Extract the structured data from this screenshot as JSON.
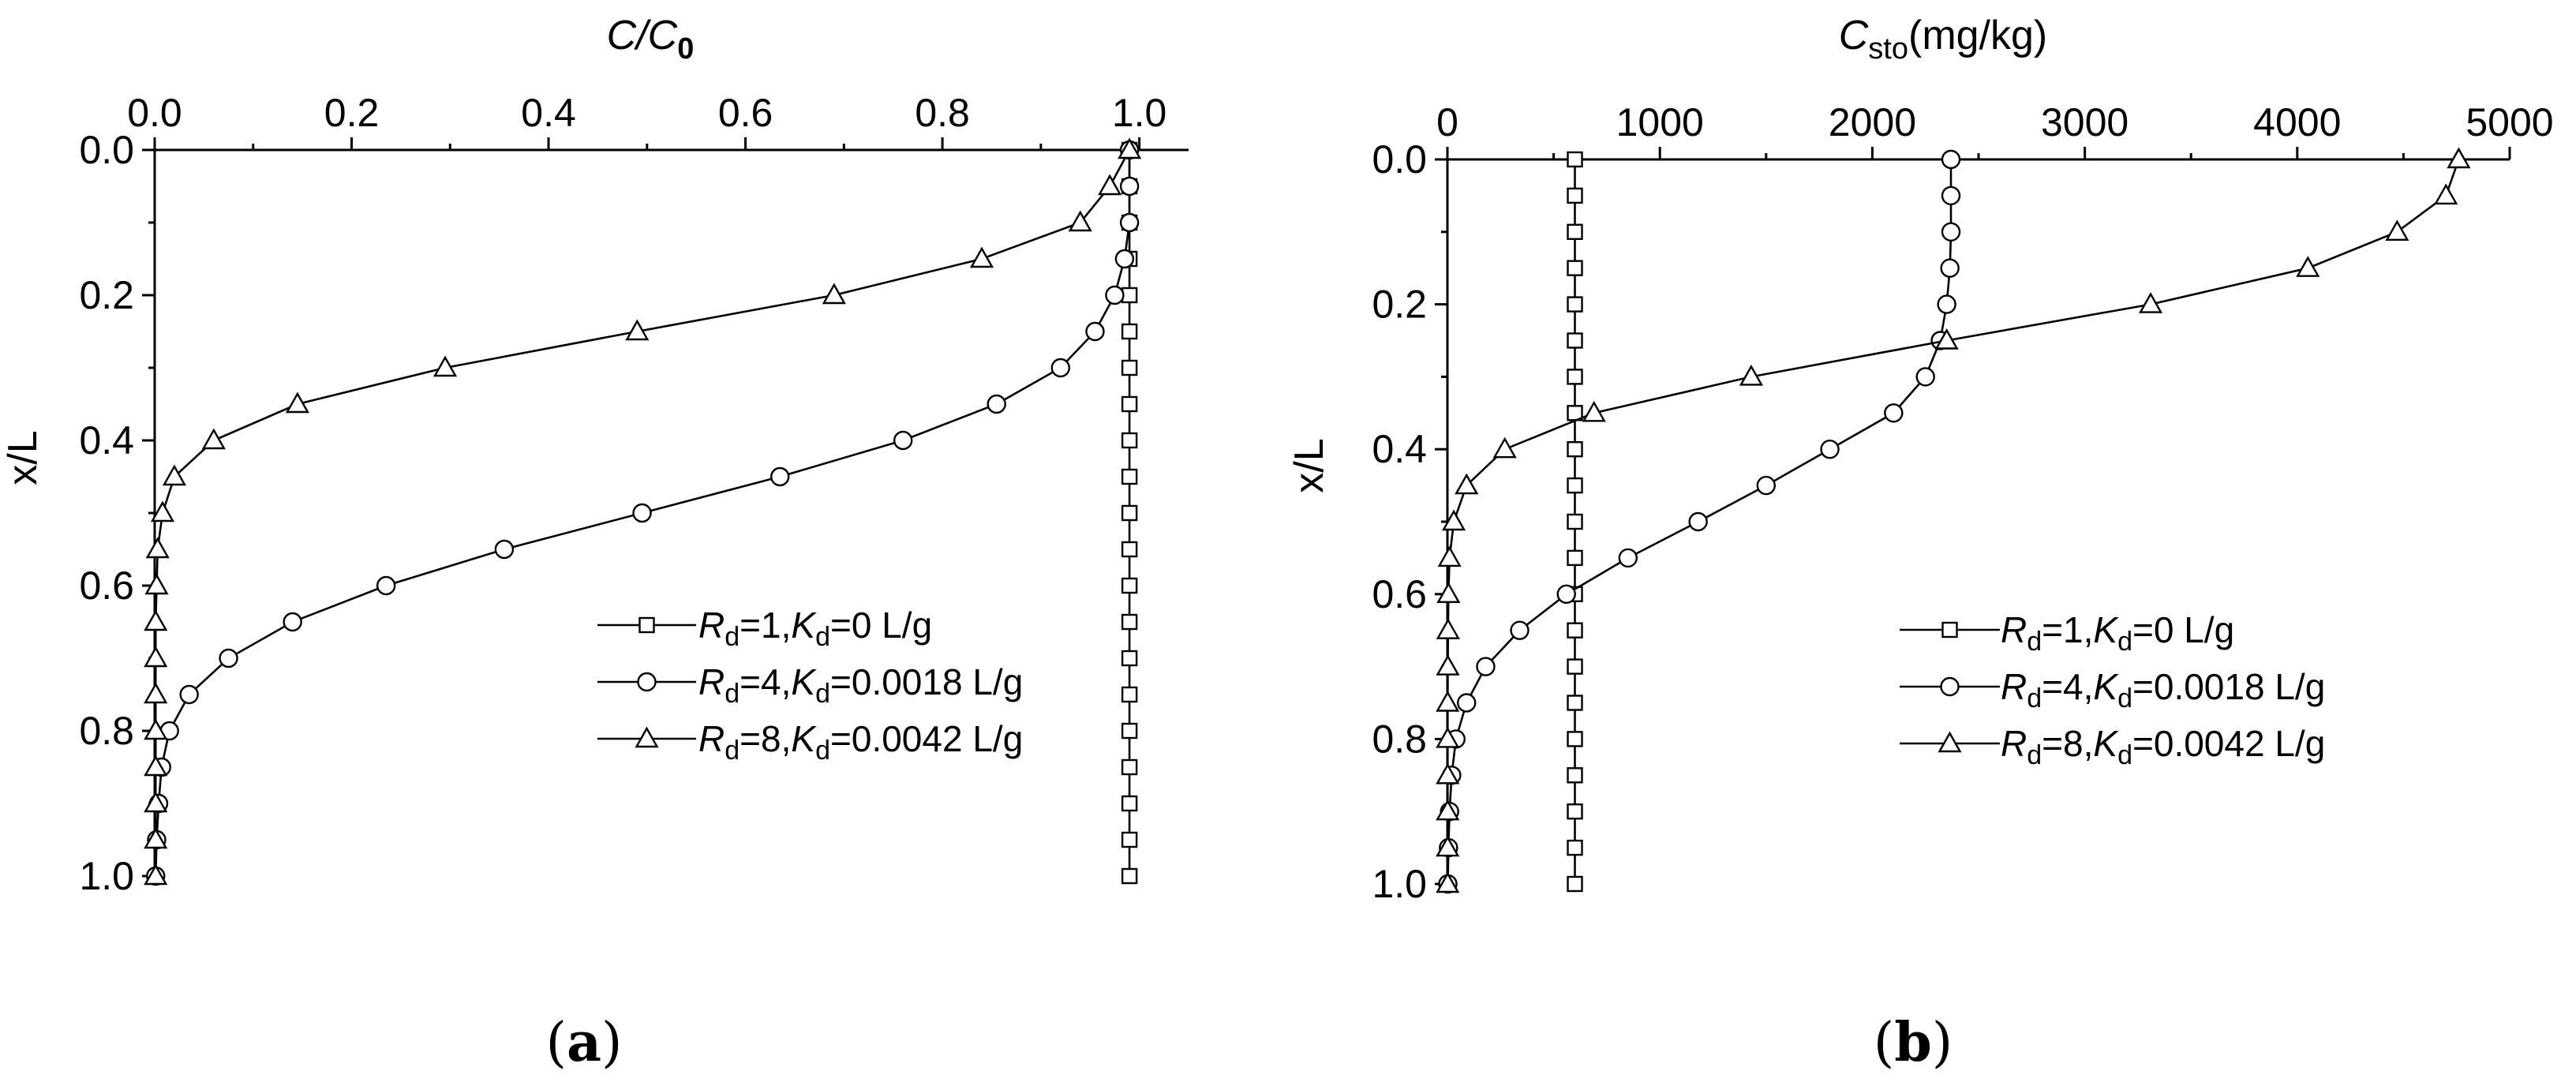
{
  "panels": [
    {
      "label_open": "(",
      "label_letter": "a",
      "label_close": ")"
    },
    {
      "label_open": "(",
      "label_letter": "b",
      "label_close": ")"
    }
  ],
  "chart_data": [
    {
      "type": "line",
      "xlabel": {
        "main": "C/C",
        "sub": "0"
      },
      "ylabel": "x/L",
      "xlim": [
        0,
        1.05
      ],
      "ylim": [
        0,
        1.0
      ],
      "y_inverted": true,
      "x_axis_position": "top",
      "xticks": [
        "0.0",
        "0.2",
        "0.4",
        "0.6",
        "0.8",
        "1.0"
      ],
      "yticks": [
        "0.0",
        "0.2",
        "0.4",
        "0.6",
        "0.8",
        "1.0"
      ],
      "legend_position": "right-middle",
      "grid": false,
      "series": [
        {
          "marker": "square",
          "R": "R",
          "Rsub": "d",
          "Rval": "=1,",
          "K": "K",
          "Ksub": "d",
          "Kval": "=0 L/g",
          "x": [
            0.99,
            0.99,
            0.99,
            0.99,
            0.99,
            0.99,
            0.99,
            0.99,
            0.99,
            0.99,
            0.99,
            0.99,
            0.99,
            0.99,
            0.99,
            0.99,
            0.99,
            0.99,
            0.99,
            0.99,
            0.99
          ],
          "y": [
            0,
            0.05,
            0.1,
            0.15,
            0.2,
            0.25,
            0.3,
            0.35,
            0.4,
            0.45,
            0.5,
            0.55,
            0.6,
            0.65,
            0.7,
            0.75,
            0.8,
            0.85,
            0.9,
            0.95,
            1.0
          ]
        },
        {
          "marker": "circle",
          "R": "R",
          "Rsub": "d",
          "Rval": "=4,",
          "K": "K",
          "Ksub": "d",
          "Kval": "=0.0018 L/g",
          "x": [
            0.99,
            0.99,
            0.99,
            0.985,
            0.975,
            0.955,
            0.92,
            0.855,
            0.76,
            0.635,
            0.495,
            0.355,
            0.235,
            0.14,
            0.075,
            0.035,
            0.015,
            0.007,
            0.004,
            0.002,
            0.001
          ],
          "y": [
            0,
            0.05,
            0.1,
            0.15,
            0.2,
            0.25,
            0.3,
            0.35,
            0.4,
            0.45,
            0.5,
            0.55,
            0.6,
            0.65,
            0.7,
            0.75,
            0.8,
            0.85,
            0.9,
            0.95,
            1.0
          ]
        },
        {
          "marker": "triangle",
          "R": "R",
          "Rsub": "d",
          "Rval": "=8,",
          "K": "K",
          "Ksub": "d",
          "Kval": "=0.0042 L/g",
          "x": [
            0.99,
            0.97,
            0.94,
            0.84,
            0.69,
            0.49,
            0.295,
            0.145,
            0.06,
            0.02,
            0.008,
            0.003,
            0.002,
            0.001,
            0.001,
            0.001,
            0.001,
            0.001,
            0.001,
            0.001,
            0.001
          ],
          "y": [
            0,
            0.05,
            0.1,
            0.15,
            0.2,
            0.25,
            0.3,
            0.35,
            0.4,
            0.45,
            0.5,
            0.55,
            0.6,
            0.65,
            0.7,
            0.75,
            0.8,
            0.85,
            0.9,
            0.95,
            1.0
          ]
        }
      ]
    },
    {
      "type": "line",
      "xlabel": {
        "main": "C",
        "sub": "sto",
        "rest": "(mg/kg)"
      },
      "ylabel": "x/L",
      "xlim": [
        0,
        5000
      ],
      "ylim": [
        0,
        1.0
      ],
      "y_inverted": true,
      "x_axis_position": "top",
      "xticks": [
        "0",
        "1000",
        "2000",
        "3000",
        "4000",
        "5000"
      ],
      "yticks": [
        "0.0",
        "0.2",
        "0.4",
        "0.6",
        "0.8",
        "1.0"
      ],
      "legend_position": "right-middle",
      "grid": false,
      "series": [
        {
          "marker": "square",
          "R": "R",
          "Rsub": "d",
          "Rval": "=1,",
          "K": "K",
          "Ksub": "d",
          "Kval": "=0 L/g",
          "x": [
            600,
            600,
            600,
            600,
            600,
            600,
            600,
            600,
            600,
            600,
            600,
            600,
            600,
            600,
            600,
            600,
            600,
            600,
            600,
            600,
            600
          ],
          "y": [
            0,
            0.05,
            0.1,
            0.15,
            0.2,
            0.25,
            0.3,
            0.35,
            0.4,
            0.45,
            0.5,
            0.55,
            0.6,
            0.65,
            0.7,
            0.75,
            0.8,
            0.85,
            0.9,
            0.95,
            1.0
          ]
        },
        {
          "marker": "circle",
          "R": "R",
          "Rsub": "d",
          "Rval": "=4,",
          "K": "K",
          "Ksub": "d",
          "Kval": "=0.0018 L/g",
          "x": [
            2370,
            2370,
            2370,
            2365,
            2350,
            2320,
            2250,
            2100,
            1800,
            1500,
            1180,
            850,
            560,
            340,
            180,
            90,
            40,
            20,
            10,
            5,
            2
          ],
          "y": [
            0,
            0.05,
            0.1,
            0.15,
            0.2,
            0.25,
            0.3,
            0.35,
            0.4,
            0.45,
            0.5,
            0.55,
            0.6,
            0.65,
            0.7,
            0.75,
            0.8,
            0.85,
            0.9,
            0.95,
            1.0
          ]
        },
        {
          "marker": "triangle",
          "R": "R",
          "Rsub": "d",
          "Rval": "=8,",
          "K": "K",
          "Ksub": "d",
          "Kval": "=0.0042 L/g",
          "x": [
            4760,
            4700,
            4470,
            4050,
            3310,
            2350,
            1430,
            690,
            270,
            90,
            30,
            10,
            5,
            3,
            2,
            1,
            1,
            1,
            1,
            1,
            1
          ],
          "y": [
            0,
            0.05,
            0.1,
            0.15,
            0.2,
            0.25,
            0.3,
            0.35,
            0.4,
            0.45,
            0.5,
            0.55,
            0.6,
            0.65,
            0.7,
            0.75,
            0.8,
            0.85,
            0.9,
            0.95,
            1.0
          ]
        }
      ]
    }
  ]
}
